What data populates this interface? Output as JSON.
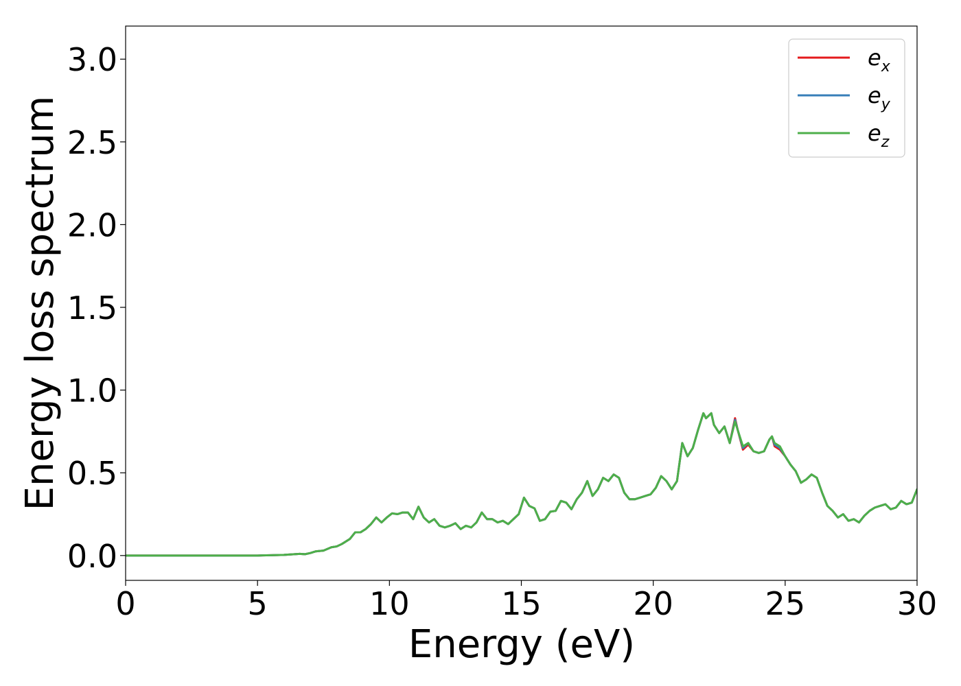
{
  "chart_data": {
    "type": "line",
    "title": "",
    "xlabel": "Energy (eV)",
    "ylabel": "Energy loss spectrum",
    "xlim": [
      0,
      30
    ],
    "ylim": [
      -0.15,
      3.2
    ],
    "xticks": [
      0,
      5,
      10,
      15,
      20,
      25,
      30
    ],
    "xtick_labels": [
      "0",
      "5",
      "10",
      "15",
      "20",
      "25",
      "30"
    ],
    "yticks": [
      0.0,
      0.5,
      1.0,
      1.5,
      2.0,
      2.5,
      3.0
    ],
    "ytick_labels": [
      "0.0",
      "0.5",
      "1.0",
      "1.5",
      "2.0",
      "2.5",
      "3.0"
    ],
    "grid": false,
    "legend_position": "top-right",
    "x": [
      0,
      1,
      2,
      3,
      4,
      5,
      5.5,
      6,
      6.3,
      6.6,
      6.8,
      7.0,
      7.2,
      7.5,
      7.8,
      8.0,
      8.2,
      8.5,
      8.7,
      8.9,
      9.1,
      9.3,
      9.5,
      9.7,
      9.9,
      10.1,
      10.3,
      10.5,
      10.7,
      10.9,
      11.1,
      11.3,
      11.5,
      11.7,
      11.9,
      12.1,
      12.3,
      12.5,
      12.7,
      12.9,
      13.1,
      13.3,
      13.5,
      13.7,
      13.9,
      14.1,
      14.3,
      14.5,
      14.7,
      14.9,
      15.1,
      15.3,
      15.5,
      15.7,
      15.9,
      16.1,
      16.3,
      16.5,
      16.7,
      16.9,
      17.1,
      17.3,
      17.5,
      17.7,
      17.9,
      18.1,
      18.3,
      18.5,
      18.7,
      18.9,
      19.1,
      19.3,
      19.5,
      19.7,
      19.9,
      20.1,
      20.3,
      20.5,
      20.7,
      20.9,
      21.1,
      21.3,
      21.5,
      21.7,
      21.9,
      22.0,
      22.1,
      22.2,
      22.3,
      22.5,
      22.7,
      22.9,
      23.1,
      23.2,
      23.4,
      23.6,
      23.8,
      24.0,
      24.2,
      24.4,
      24.5,
      24.6,
      24.8,
      25.0,
      25.2,
      25.4,
      25.6,
      25.8,
      26.0,
      26.2,
      26.4,
      26.6,
      26.8,
      27.0,
      27.2,
      27.4,
      27.6,
      27.8,
      28.0,
      28.2,
      28.4,
      28.6,
      28.8,
      29.0,
      29.2,
      29.4,
      29.6,
      29.8,
      30.0
    ],
    "series": [
      {
        "name": "e_x",
        "color": "#e41a1c",
        "values": [
          0,
          0,
          0,
          0,
          0,
          0,
          0.002,
          0.004,
          0.007,
          0.01,
          0.008,
          0.015,
          0.025,
          0.03,
          0.05,
          0.055,
          0.07,
          0.1,
          0.14,
          0.14,
          0.16,
          0.19,
          0.23,
          0.2,
          0.23,
          0.255,
          0.25,
          0.26,
          0.26,
          0.22,
          0.295,
          0.23,
          0.2,
          0.22,
          0.18,
          0.17,
          0.18,
          0.195,
          0.16,
          0.18,
          0.17,
          0.2,
          0.26,
          0.22,
          0.22,
          0.2,
          0.21,
          0.19,
          0.22,
          0.25,
          0.35,
          0.3,
          0.285,
          0.21,
          0.22,
          0.265,
          0.27,
          0.33,
          0.32,
          0.28,
          0.34,
          0.38,
          0.45,
          0.36,
          0.4,
          0.47,
          0.45,
          0.49,
          0.47,
          0.38,
          0.34,
          0.34,
          0.35,
          0.36,
          0.37,
          0.41,
          0.48,
          0.45,
          0.4,
          0.45,
          0.68,
          0.6,
          0.65,
          0.76,
          0.86,
          0.83,
          0.845,
          0.86,
          0.79,
          0.74,
          0.78,
          0.68,
          0.83,
          0.76,
          0.64,
          0.67,
          0.63,
          0.62,
          0.63,
          0.7,
          0.72,
          0.66,
          0.64,
          0.6,
          0.55,
          0.51,
          0.44,
          0.46,
          0.49,
          0.47,
          0.38,
          0.3,
          0.27,
          0.23,
          0.25,
          0.21,
          0.22,
          0.2,
          0.24,
          0.27,
          0.29,
          0.3,
          0.31,
          0.28,
          0.29,
          0.33,
          0.31,
          0.32,
          0.4
        ]
      },
      {
        "name": "e_y",
        "color": "#377eb8",
        "values": [
          0,
          0,
          0,
          0,
          0,
          0,
          0.002,
          0.004,
          0.007,
          0.01,
          0.008,
          0.015,
          0.025,
          0.03,
          0.05,
          0.055,
          0.07,
          0.1,
          0.14,
          0.14,
          0.16,
          0.19,
          0.23,
          0.2,
          0.23,
          0.255,
          0.25,
          0.26,
          0.26,
          0.22,
          0.295,
          0.23,
          0.2,
          0.22,
          0.18,
          0.17,
          0.18,
          0.195,
          0.16,
          0.18,
          0.17,
          0.2,
          0.26,
          0.22,
          0.22,
          0.2,
          0.21,
          0.19,
          0.22,
          0.25,
          0.35,
          0.3,
          0.285,
          0.21,
          0.22,
          0.265,
          0.27,
          0.33,
          0.32,
          0.28,
          0.34,
          0.38,
          0.45,
          0.36,
          0.4,
          0.47,
          0.45,
          0.49,
          0.47,
          0.38,
          0.34,
          0.34,
          0.35,
          0.36,
          0.37,
          0.41,
          0.48,
          0.45,
          0.4,
          0.45,
          0.68,
          0.6,
          0.65,
          0.76,
          0.86,
          0.83,
          0.845,
          0.86,
          0.79,
          0.74,
          0.78,
          0.68,
          0.82,
          0.76,
          0.65,
          0.68,
          0.63,
          0.62,
          0.63,
          0.7,
          0.72,
          0.67,
          0.65,
          0.6,
          0.55,
          0.51,
          0.44,
          0.46,
          0.49,
          0.47,
          0.38,
          0.3,
          0.27,
          0.23,
          0.25,
          0.21,
          0.22,
          0.2,
          0.24,
          0.27,
          0.29,
          0.3,
          0.31,
          0.28,
          0.29,
          0.33,
          0.31,
          0.32,
          0.4
        ]
      },
      {
        "name": "e_z",
        "color": "#4daf4a",
        "values": [
          0,
          0,
          0,
          0,
          0,
          0,
          0.002,
          0.004,
          0.007,
          0.01,
          0.008,
          0.015,
          0.025,
          0.03,
          0.05,
          0.055,
          0.07,
          0.1,
          0.14,
          0.14,
          0.16,
          0.19,
          0.23,
          0.2,
          0.23,
          0.255,
          0.25,
          0.26,
          0.26,
          0.22,
          0.295,
          0.23,
          0.2,
          0.22,
          0.18,
          0.17,
          0.18,
          0.195,
          0.16,
          0.18,
          0.17,
          0.2,
          0.26,
          0.22,
          0.22,
          0.2,
          0.21,
          0.19,
          0.22,
          0.25,
          0.35,
          0.3,
          0.285,
          0.21,
          0.22,
          0.265,
          0.27,
          0.33,
          0.32,
          0.28,
          0.34,
          0.38,
          0.45,
          0.36,
          0.4,
          0.47,
          0.45,
          0.49,
          0.47,
          0.38,
          0.34,
          0.34,
          0.35,
          0.36,
          0.37,
          0.41,
          0.48,
          0.45,
          0.4,
          0.45,
          0.68,
          0.6,
          0.65,
          0.76,
          0.86,
          0.83,
          0.845,
          0.86,
          0.79,
          0.74,
          0.78,
          0.68,
          0.81,
          0.76,
          0.66,
          0.68,
          0.63,
          0.62,
          0.63,
          0.7,
          0.72,
          0.68,
          0.66,
          0.6,
          0.55,
          0.51,
          0.44,
          0.46,
          0.49,
          0.47,
          0.38,
          0.3,
          0.27,
          0.23,
          0.25,
          0.21,
          0.22,
          0.2,
          0.24,
          0.27,
          0.29,
          0.3,
          0.31,
          0.28,
          0.29,
          0.33,
          0.31,
          0.32,
          0.4
        ]
      }
    ],
    "legend": [
      {
        "base": "e",
        "sub": "x",
        "color": "#e41a1c"
      },
      {
        "base": "e",
        "sub": "y",
        "color": "#377eb8"
      },
      {
        "base": "e",
        "sub": "z",
        "color": "#4daf4a"
      }
    ]
  }
}
